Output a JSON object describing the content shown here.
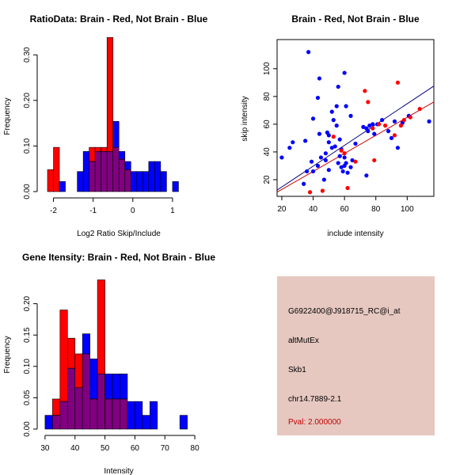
{
  "colors": {
    "brain": "#ff0000",
    "not_brain": "#0000ff",
    "overlap": "#800080",
    "info_bg": "#e6c8c0",
    "pval_text": "#c00000",
    "brain_line": "#cc0000",
    "not_brain_line": "#000080"
  },
  "info_panel": {
    "probe_id": "G6922400@J918715_RC@i_at",
    "event_type": "altMutEx",
    "gene": "Skb1",
    "location": "chr14.7889-2.1",
    "pval": "Pval: 2.000000"
  },
  "chart_data": [
    {
      "type": "bar",
      "subtype": "overlaid-histogram",
      "title": "RatioData: Brain - Red, Not Brain - Blue",
      "xlabel": "Log2 Ratio Skip/Include",
      "ylabel": "Frequency",
      "xlim": [
        -2.25,
        1.6
      ],
      "ylim": [
        0,
        0.33
      ],
      "xticks": [
        -2,
        -1,
        0,
        1
      ],
      "yticks": [
        0.0,
        0.1,
        0.2,
        0.3
      ],
      "ytick_labels": [
        "0.00",
        "0.10",
        "0.20",
        "0.30"
      ],
      "bin_width": 0.15,
      "bin_start": -2.15,
      "series": [
        {
          "name": "Brain",
          "color": "red",
          "values": [
            0.048,
            0.097,
            0,
            0,
            0,
            0,
            0,
            0.097,
            0.097,
            0.097,
            0.338,
            0.097,
            0.071,
            0.048,
            0,
            0,
            0,
            0,
            0,
            0,
            0,
            0,
            0,
            0,
            0,
            0
          ]
        },
        {
          "name": "Not Brain",
          "color": "blue",
          "values": [
            0,
            0,
            0.022,
            0,
            0,
            0.044,
            0.088,
            0.066,
            0.088,
            0.088,
            0.088,
            0.154,
            0.088,
            0.066,
            0.044,
            0.044,
            0.044,
            0.066,
            0.066,
            0.044,
            0,
            0.022,
            0,
            0,
            0,
            0
          ]
        }
      ]
    },
    {
      "type": "scatter",
      "title": "Brain - Red, Not Brain - Blue",
      "xlabel": "include intensity",
      "ylabel": "skip intensity",
      "xlim": [
        17,
        117
      ],
      "ylim": [
        8,
        121
      ],
      "xticks": [
        20,
        40,
        60,
        80,
        100
      ],
      "yticks": [
        20,
        40,
        60,
        80,
        100
      ],
      "series": [
        {
          "name": "Not Brain",
          "color": "blue",
          "points": [
            [
              20,
              36
            ],
            [
              25,
              43
            ],
            [
              27,
              47
            ],
            [
              34,
              17
            ],
            [
              35,
              48
            ],
            [
              36,
              26
            ],
            [
              37,
              112
            ],
            [
              39,
              33
            ],
            [
              40,
              64
            ],
            [
              40,
              26
            ],
            [
              43,
              30
            ],
            [
              43,
              79
            ],
            [
              44,
              93
            ],
            [
              44,
              53
            ],
            [
              45,
              36
            ],
            [
              47,
              20
            ],
            [
              48,
              39
            ],
            [
              48,
              34
            ],
            [
              49,
              54
            ],
            [
              50,
              47
            ],
            [
              50,
              52
            ],
            [
              50,
              27
            ],
            [
              52,
              69
            ],
            [
              52,
              43
            ],
            [
              53,
              63
            ],
            [
              54,
              44
            ],
            [
              55,
              73
            ],
            [
              55,
              59
            ],
            [
              56,
              87
            ],
            [
              56,
              32
            ],
            [
              57,
              49
            ],
            [
              57,
              37
            ],
            [
              58,
              42
            ],
            [
              58,
              29
            ],
            [
              59,
              26
            ],
            [
              60,
              97
            ],
            [
              60,
              30
            ],
            [
              60,
              36
            ],
            [
              61,
              73
            ],
            [
              61,
              32
            ],
            [
              62,
              25
            ],
            [
              64,
              66
            ],
            [
              64,
              29
            ],
            [
              65,
              34
            ],
            [
              67,
              46
            ],
            [
              72,
              58
            ],
            [
              74,
              57
            ],
            [
              74,
              23
            ],
            [
              75,
              55
            ],
            [
              76,
              59
            ],
            [
              78,
              60
            ],
            [
              79,
              53
            ],
            [
              81,
              60
            ],
            [
              84,
              63
            ],
            [
              88,
              55
            ],
            [
              90,
              50
            ],
            [
              92,
              62
            ],
            [
              94,
              43
            ],
            [
              97,
              61
            ],
            [
              101,
              66
            ],
            [
              114,
              62
            ]
          ]
        },
        {
          "name": "Brain",
          "color": "red",
          "points": [
            [
              38,
              11
            ],
            [
              46,
              12
            ],
            [
              53,
              51
            ],
            [
              58,
              41
            ],
            [
              60,
              39
            ],
            [
              62,
              14
            ],
            [
              67,
              33
            ],
            [
              73,
              84
            ],
            [
              75,
              76
            ],
            [
              78,
              57
            ],
            [
              79,
              34
            ],
            [
              82,
              60
            ],
            [
              86,
              59
            ],
            [
              92,
              52
            ],
            [
              94,
              90
            ],
            [
              96,
              59
            ],
            [
              98,
              63
            ],
            [
              102,
              65
            ],
            [
              108,
              71
            ]
          ]
        }
      ],
      "fit_lines": [
        {
          "name": "Not Brain",
          "color": "navy",
          "x": [
            17,
            117
          ],
          "y": [
            12.5,
            87.5
          ]
        },
        {
          "name": "Brain",
          "color": "red",
          "x": [
            17,
            117
          ],
          "y": [
            11.0,
            76.0
          ]
        }
      ]
    },
    {
      "type": "bar",
      "subtype": "overlaid-histogram",
      "title": "Gene Itensity: Brain - Red, Not Brain - Blue",
      "xlabel": "Intensity",
      "ylabel": "Frequency",
      "xlim": [
        29.5,
        80.5
      ],
      "ylim": [
        0,
        0.245
      ],
      "xticks": [
        30,
        40,
        50,
        60,
        70,
        80
      ],
      "yticks": [
        0.0,
        0.05,
        0.1,
        0.15,
        0.2
      ],
      "ytick_labels": [
        "0.00",
        "0.05",
        "0.10",
        "0.15",
        "0.20"
      ],
      "bin_width": 2.5,
      "bin_start": 30,
      "series": [
        {
          "name": "Brain",
          "color": "red",
          "values": [
            0,
            0.048,
            0.19,
            0.145,
            0.12,
            0.12,
            0.048,
            0.238,
            0.048,
            0.048,
            0.048,
            0,
            0,
            0,
            0,
            0,
            0,
            0,
            0,
            0
          ]
        },
        {
          "name": "Not Brain",
          "color": "blue",
          "values": [
            0.022,
            0.022,
            0.044,
            0.097,
            0.066,
            0.152,
            0.112,
            0.088,
            0.088,
            0.088,
            0.088,
            0.044,
            0.044,
            0.022,
            0.044,
            0,
            0,
            0,
            0.022,
            0
          ]
        }
      ]
    }
  ]
}
